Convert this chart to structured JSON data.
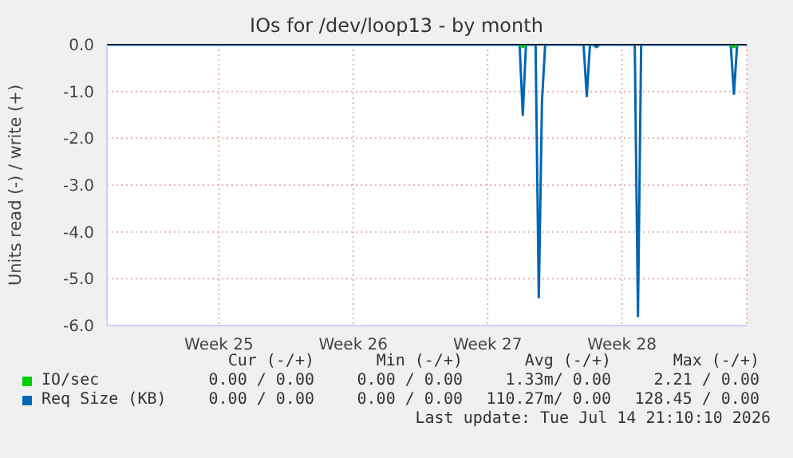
{
  "chart_data": {
    "type": "line",
    "title": "IOs for /dev/loop13 - by month",
    "ylabel": "Units read (-) / write (+)",
    "categories": [
      null,
      null,
      null,
      null,
      null,
      null,
      null,
      null,
      null,
      null,
      null,
      null,
      null,
      null,
      null,
      null,
      null,
      null,
      null,
      null,
      null,
      null,
      null,
      null,
      null,
      null,
      null,
      null,
      null,
      null,
      null,
      null,
      null,
      null,
      null,
      "Week 25",
      null,
      null,
      null,
      null,
      null,
      null,
      null,
      null,
      null,
      null,
      null,
      null,
      null,
      null,
      null,
      null,
      null,
      null,
      null,
      null,
      null,
      null,
      null,
      null,
      null,
      null,
      null,
      null,
      null,
      null,
      null,
      null,
      null,
      null,
      null,
      null,
      null,
      null,
      null,
      null,
      null,
      "Week 26",
      null,
      null,
      null,
      null,
      null,
      null,
      null,
      null,
      null,
      null,
      null,
      null,
      null,
      null,
      null,
      null,
      null,
      null,
      null,
      null,
      null,
      null,
      null,
      null,
      null,
      null,
      null,
      null,
      null,
      null,
      null,
      null,
      null,
      null,
      null,
      null,
      null,
      null,
      null,
      null,
      null,
      "Week 27",
      null,
      null,
      null,
      null,
      null,
      null,
      null,
      null,
      null,
      null,
      null,
      null,
      null,
      null,
      null,
      null,
      null,
      null,
      null,
      null,
      null,
      null,
      null,
      null,
      null,
      null,
      null,
      null,
      null,
      null,
      null,
      null,
      null,
      null,
      null,
      null,
      null,
      null,
      null,
      null,
      null,
      "Week 28",
      null,
      null,
      null,
      null,
      null,
      null,
      null,
      null,
      null,
      null,
      null,
      null,
      null,
      null,
      null,
      null,
      null,
      null,
      null,
      null,
      null,
      null,
      null,
      null,
      null,
      null,
      null,
      null,
      null,
      null,
      null,
      null,
      null,
      null,
      null,
      null,
      null,
      null,
      null
    ],
    "ylim": [
      -6,
      0
    ],
    "yticks": [
      {
        "value": -6,
        "label": "-6.0"
      },
      {
        "value": -5,
        "label": "-5.0"
      },
      {
        "value": -4,
        "label": "-4.0"
      },
      {
        "value": -3,
        "label": "-3.0"
      },
      {
        "value": -2,
        "label": "-2.0"
      },
      {
        "value": -1,
        "label": "-1.0"
      },
      {
        "value": 0,
        "label": "0.0"
      }
    ],
    "grid": true,
    "legend": "bottom",
    "marker": "none",
    "line_style": "solid",
    "ref_lines": [
      {
        "axis": "y",
        "value": 0,
        "color": "#000000"
      }
    ],
    "series": [
      {
        "name": "IO/sec",
        "color": "#00cc00",
        "values": [
          null,
          null,
          null,
          null,
          null,
          null,
          null,
          null,
          null,
          null,
          null,
          null,
          null,
          null,
          null,
          null,
          null,
          null,
          null,
          null,
          null,
          null,
          null,
          null,
          null,
          null,
          null,
          null,
          null,
          null,
          null,
          null,
          null,
          null,
          null,
          null,
          null,
          null,
          null,
          null,
          null,
          null,
          null,
          null,
          null,
          null,
          null,
          null,
          null,
          null,
          null,
          null,
          null,
          null,
          null,
          null,
          null,
          null,
          null,
          null,
          null,
          null,
          null,
          null,
          null,
          null,
          null,
          null,
          null,
          null,
          null,
          null,
          null,
          null,
          null,
          null,
          null,
          null,
          null,
          null,
          null,
          null,
          null,
          null,
          null,
          null,
          null,
          null,
          null,
          null,
          null,
          null,
          null,
          null,
          null,
          null,
          null,
          null,
          null,
          null,
          null,
          null,
          null,
          null,
          null,
          null,
          null,
          null,
          null,
          null,
          null,
          null,
          null,
          null,
          null,
          null,
          null,
          null,
          null,
          null,
          null,
          null,
          null,
          null,
          null,
          null,
          null,
          null,
          null,
          0,
          -0.05,
          0,
          null,
          null,
          null,
          null,
          null,
          null,
          null,
          null,
          null,
          null,
          null,
          null,
          null,
          null,
          null,
          null,
          null,
          null,
          null,
          null,
          null,
          null,
          null,
          null,
          null,
          null,
          null,
          null,
          null,
          null,
          null,
          null,
          null,
          null,
          null,
          null,
          null,
          null,
          null,
          null,
          null,
          null,
          null,
          null,
          null,
          null,
          null,
          null,
          null,
          null,
          null,
          null,
          null,
          null,
          null,
          null,
          null,
          null,
          null,
          null,
          null,
          null,
          null,
          0,
          -0.05,
          0,
          null,
          null,
          null
        ]
      },
      {
        "name": "Req Size (KB)",
        "color": "#0066b3",
        "values": [
          0,
          0,
          0,
          0,
          0,
          0,
          0,
          0,
          0,
          0,
          0,
          0,
          0,
          0,
          0,
          0,
          0,
          0,
          0,
          0,
          0,
          0,
          0,
          0,
          0,
          0,
          0,
          0,
          0,
          0,
          0,
          0,
          0,
          0,
          0,
          0,
          0,
          0,
          0,
          0,
          0,
          0,
          0,
          0,
          0,
          0,
          0,
          0,
          0,
          0,
          0,
          0,
          0,
          0,
          0,
          0,
          0,
          0,
          0,
          0,
          0,
          0,
          0,
          0,
          0,
          0,
          0,
          0,
          0,
          0,
          0,
          0,
          0,
          0,
          0,
          0,
          0,
          0,
          0,
          0,
          0,
          0,
          0,
          0,
          0,
          0,
          0,
          0,
          0,
          0,
          0,
          0,
          0,
          0,
          0,
          0,
          0,
          0,
          0,
          0,
          0,
          0,
          0,
          0,
          0,
          0,
          0,
          0,
          0,
          0,
          0,
          0,
          0,
          0,
          0,
          0,
          0,
          0,
          0,
          0,
          0,
          0,
          0,
          0,
          0,
          0,
          0,
          0,
          0,
          0,
          -1.5,
          0,
          0,
          0,
          0,
          -5.4,
          -1.2,
          0,
          0,
          0,
          0,
          0,
          0,
          0,
          0,
          0,
          0,
          0,
          0,
          0,
          -1.1,
          0,
          0,
          -0.05,
          0,
          0,
          0,
          0,
          0,
          0,
          0,
          0,
          0,
          0,
          0,
          0,
          -5.8,
          0,
          0,
          0,
          0,
          0,
          0,
          0,
          0,
          0,
          0,
          0,
          0,
          0,
          0,
          0,
          0,
          0,
          0,
          0,
          0,
          0,
          0,
          0,
          0,
          0,
          0,
          0,
          0,
          0,
          -1.05,
          0,
          0,
          0,
          0
        ]
      }
    ],
    "annotations": [
      "Cur (-/+)",
      "Min (-/+)",
      "Avg (-/+)",
      "Max (-/+)",
      "0.00 / 0.00",
      "0.00 / 0.00",
      "1.33m/ 0.00",
      "2.21 / 0.00",
      "0.00 / 0.00",
      "0.00 / 0.00",
      "110.27m/ 0.00",
      "128.45 / 0.00",
      "Last update: Tue Jul 14 21:10:10 2026"
    ]
  }
}
